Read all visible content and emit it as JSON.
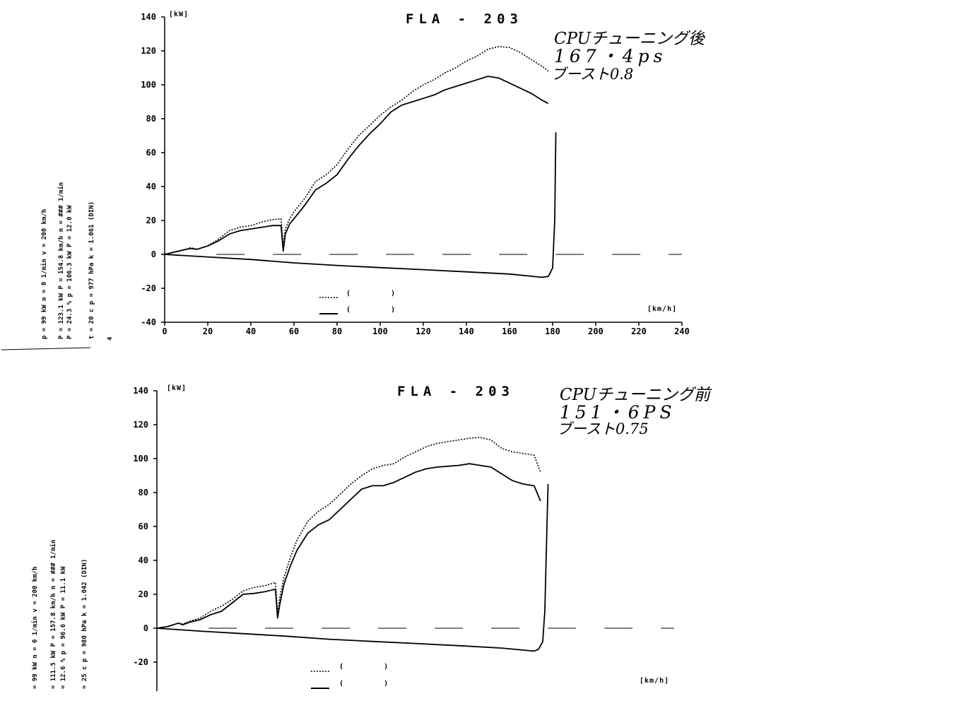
{
  "charts": [
    {
      "title": "FLA - 203",
      "y_unit": "[kW]",
      "x_unit": "[km/h]",
      "annotation": [
        "CPUチューニング後",
        "167・4ps",
        "ブースト0.8"
      ],
      "y_ticks": [
        "140",
        "120",
        "100",
        "80",
        "60",
        "40",
        "20",
        "0",
        "-20",
        "-40"
      ],
      "x_ticks": [
        "0",
        "20",
        "40",
        "60",
        "80",
        "100",
        "120",
        "140",
        "160",
        "180",
        "200",
        "220",
        "240"
      ],
      "legend": [
        {
          "style": "dashed",
          "label": "(        )"
        },
        {
          "style": "solid",
          "label": "(        )"
        }
      ],
      "side_rows": [
        [
          "p",
          "=",
          "99 kW",
          "n",
          "=",
          "0 1/min",
          "v",
          "=",
          "200 km/h"
        ],
        [
          "P",
          "=",
          "123.1 kW",
          "P",
          "=",
          "154.8 km/h",
          "n",
          "=",
          "### 1/min"
        ],
        [
          "P",
          "=",
          "24.3 %",
          "p",
          "=",
          "106.3 kW",
          "P",
          "=",
          "12.0 kW"
        ],
        [
          "t",
          "=",
          "20 c",
          "p",
          "=",
          "977 hPa",
          "k",
          "=",
          "1.061 (DIN)"
        ]
      ],
      "side_extra": "4"
    },
    {
      "title": "FLA - 203",
      "y_unit": "[kW]",
      "x_unit": "[km/h]",
      "annotation": [
        "CPUチューニング前",
        "151・6PS",
        "ブースト0.75"
      ],
      "y_ticks": [
        "140",
        "120",
        "100",
        "80",
        "60",
        "40",
        "20",
        "0",
        "-20"
      ],
      "legend": [
        {
          "style": "dashed",
          "label": "(        )"
        },
        {
          "style": "solid",
          "label": "(        )"
        }
      ],
      "side_rows": [
        [
          "=",
          "99 kW",
          "n",
          "=",
          "0 1/min",
          "v",
          "=",
          "200 km/h"
        ],
        [
          "=",
          "111.5 kW",
          "P",
          "=",
          "157.8 km/h",
          "n",
          "=",
          "### 1/min"
        ],
        [
          "=",
          "12.6 %",
          "p",
          "=",
          "96.6 kW",
          "P",
          "=",
          "11.1 kW"
        ],
        [
          "=",
          "25 c",
          "p",
          "=",
          "980 hPa",
          "k",
          "=",
          "1.042 (DIN)"
        ]
      ]
    }
  ],
  "chart_data": [
    {
      "type": "line",
      "title": "FLA - 203",
      "xlabel": "[km/h]",
      "ylabel": "[kW]",
      "xlim": [
        0,
        240
      ],
      "ylim": [
        -40,
        140
      ],
      "series": [
        {
          "style": "dashed",
          "x": [
            0,
            5,
            10,
            12,
            15,
            20,
            25,
            30,
            35,
            40,
            45,
            50,
            54,
            55,
            56,
            58,
            60,
            65,
            70,
            75,
            80,
            85,
            90,
            95,
            100,
            105,
            110,
            115,
            120,
            125,
            130,
            135,
            140,
            145,
            150,
            155,
            160,
            165,
            170,
            175,
            178
          ],
          "y": [
            0,
            1.5,
            3,
            4,
            3,
            5,
            9,
            14,
            16,
            17,
            19,
            20.5,
            21,
            5,
            15,
            21,
            25,
            33,
            43,
            47,
            53,
            62,
            70,
            76,
            82,
            87,
            91,
            96,
            100,
            103,
            107,
            110,
            114,
            117,
            121,
            122.5,
            122,
            119,
            115,
            111,
            108
          ]
        },
        {
          "style": "solid",
          "x": [
            0,
            5,
            10,
            12,
            15,
            20,
            25,
            30,
            35,
            40,
            45,
            50,
            54,
            55,
            56,
            58,
            60,
            65,
            70,
            75,
            80,
            85,
            90,
            95,
            100,
            105,
            110,
            115,
            120,
            125,
            130,
            135,
            140,
            145,
            150,
            155,
            160,
            165,
            170,
            175,
            178
          ],
          "y": [
            0,
            1.5,
            3,
            3.5,
            3,
            5,
            8,
            12,
            14,
            15,
            16,
            17,
            17,
            2,
            12,
            18,
            21,
            29,
            38,
            42,
            47,
            56,
            64,
            71,
            77,
            84,
            88,
            90,
            92,
            94,
            97,
            99,
            101,
            103,
            105,
            104,
            101,
            98,
            95,
            91,
            89
          ]
        },
        {
          "style": "solid",
          "x": [
            0,
            20,
            40,
            60,
            80,
            100,
            120,
            140,
            160,
            175,
            178,
            180,
            181,
            181.5
          ],
          "y": [
            0,
            -1.5,
            -3,
            -5,
            -6.5,
            -7.8,
            -9,
            -10.3,
            -11.6,
            -13.5,
            -13,
            -8,
            20,
            72
          ]
        }
      ]
    },
    {
      "type": "line",
      "title": "FLA - 203",
      "xlabel": "[km/h]",
      "ylabel": "[kW]",
      "xlim": [
        0,
        240
      ],
      "ylim": [
        -40,
        140
      ],
      "series": [
        {
          "style": "dashed",
          "x": [
            0,
            5,
            10,
            12,
            15,
            20,
            25,
            30,
            35,
            40,
            45,
            50,
            55,
            56,
            57,
            59,
            62,
            65,
            70,
            75,
            80,
            85,
            90,
            95,
            100,
            105,
            110,
            115,
            120,
            125,
            130,
            135,
            140,
            145,
            150,
            155,
            160,
            165,
            170,
            175,
            178
          ],
          "y": [
            0,
            1,
            3,
            2.5,
            4,
            6,
            10,
            13,
            17,
            22,
            24,
            25,
            27,
            9,
            18,
            30,
            42,
            52,
            63,
            69,
            73,
            79,
            85,
            90,
            94,
            96,
            97,
            101,
            104,
            107,
            109,
            110,
            111,
            112,
            112.5,
            111,
            106,
            104,
            103,
            102,
            92
          ]
        },
        {
          "style": "solid",
          "x": [
            0,
            5,
            10,
            12,
            15,
            20,
            25,
            30,
            35,
            40,
            45,
            50,
            55,
            56,
            57,
            59,
            62,
            65,
            70,
            75,
            80,
            85,
            90,
            95,
            100,
            105,
            110,
            115,
            120,
            125,
            130,
            135,
            140,
            145,
            150,
            155,
            160,
            165,
            170,
            175,
            178
          ],
          "y": [
            0,
            1,
            3,
            2,
            3.5,
            5,
            8,
            10,
            15,
            20,
            20.5,
            21.5,
            23,
            6,
            14,
            26,
            37,
            46,
            56,
            61,
            64,
            70,
            76,
            82,
            84,
            84,
            86,
            89,
            92,
            94,
            95,
            95.5,
            96,
            97,
            96,
            95,
            91,
            87,
            85,
            84,
            75
          ]
        },
        {
          "style": "solid",
          "x": [
            0,
            20,
            40,
            60,
            80,
            100,
            120,
            140,
            160,
            175,
            177,
            179,
            180,
            181,
            181.5
          ],
          "y": [
            0,
            -1.7,
            -3.2,
            -4.7,
            -6.5,
            -7.8,
            -9,
            -10.3,
            -11.7,
            -13.5,
            -12.5,
            -8,
            10,
            60,
            85
          ]
        }
      ]
    }
  ]
}
